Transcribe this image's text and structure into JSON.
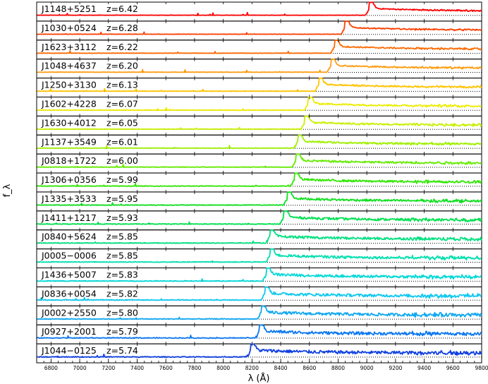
{
  "chart_data": {
    "type": "line",
    "title": "",
    "xlabel": "λ (Å)",
    "ylabel": "f_λ",
    "xlim": [
      6700,
      9800
    ],
    "x_ticks": [
      6800,
      7000,
      7200,
      7400,
      7600,
      7800,
      8000,
      8200,
      8400,
      8600,
      8800,
      9000,
      9200,
      9400,
      9600,
      9800
    ],
    "layout": "stacked panels, one spectrum per panel, dotted zero line in each panel",
    "series": [
      {
        "label": "J1148+5251",
        "z_text": "z=6.42",
        "z": 6.42,
        "color": "#ff0000"
      },
      {
        "label": "J1030+0524",
        "z_text": "z=6.28",
        "z": 6.28,
        "color": "#ff4000"
      },
      {
        "label": "J1623+3112",
        "z_text": "z=6.22",
        "z": 6.22,
        "color": "#ff6a00"
      },
      {
        "label": "J1048+4637",
        "z_text": "z=6.20",
        "z": 6.2,
        "color": "#ff9c10"
      },
      {
        "label": "J1250+3130",
        "z_text": "z=6.13",
        "z": 6.13,
        "color": "#ffc400"
      },
      {
        "label": "J1602+4228",
        "z_text": "z=6.07",
        "z": 6.07,
        "color": "#ecec00"
      },
      {
        "label": "J1630+4012",
        "z_text": "z=6.05",
        "z": 6.05,
        "color": "#c8f000"
      },
      {
        "label": "J1137+3549",
        "z_text": "z=6.01",
        "z": 6.01,
        "color": "#a0f000"
      },
      {
        "label": "J0818+1722",
        "z_text": "z=6.00",
        "z": 6.0,
        "color": "#64ec00"
      },
      {
        "label": "J1306+0356",
        "z_text": "z=5.99",
        "z": 5.99,
        "color": "#30e800"
      },
      {
        "label": "J1335+3533",
        "z_text": "z=5.95",
        "z": 5.95,
        "color": "#10e020"
      },
      {
        "label": "J1411+1217",
        "z_text": "z=5.93",
        "z": 5.93,
        "color": "#00e050"
      },
      {
        "label": "J0840+5624",
        "z_text": "z=5.85",
        "z": 5.85,
        "color": "#00e080"
      },
      {
        "label": "J0005−0006",
        "z_text": "z=5.85",
        "z": 5.85,
        "color": "#00e0b0"
      },
      {
        "label": "J1436+5007",
        "z_text": "z=5.83",
        "z": 5.83,
        "color": "#00d8d8"
      },
      {
        "label": "J0836+0054",
        "z_text": "z=5.82",
        "z": 5.82,
        "color": "#10c8f0"
      },
      {
        "label": "J0002+2550",
        "z_text": "z=5.80",
        "z": 5.8,
        "color": "#10a8f0"
      },
      {
        "label": "J0927+2001",
        "z_text": "z=5.79",
        "z": 5.79,
        "color": "#0c78f0"
      },
      {
        "label": "J1044−0125",
        "z_text": "z=5.74",
        "z": 5.74,
        "color": "#1040e0"
      }
    ]
  }
}
